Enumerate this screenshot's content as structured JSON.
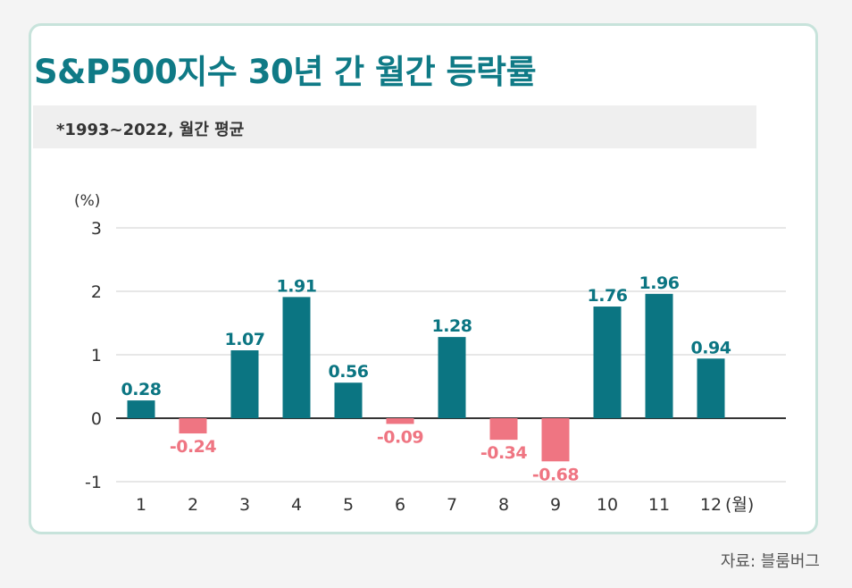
{
  "title": "S&P500지수 30년 간 월간 등락률",
  "subtitle": "*1993~2022, 월간 평균",
  "source": "자료: 블룸버그",
  "colors": {
    "positive": "#0b7582",
    "negative": "#ef7582",
    "title": "#0f7a86",
    "grid": "#cfcfcf",
    "zero_line": "#333333",
    "card_border": "#c7e3db"
  },
  "chart_data": {
    "type": "bar",
    "unit_label": "(%)",
    "x_unit_label": "(월)",
    "categories": [
      "1",
      "2",
      "3",
      "4",
      "5",
      "6",
      "7",
      "8",
      "9",
      "10",
      "11",
      "12"
    ],
    "values": [
      0.28,
      -0.24,
      1.07,
      1.91,
      0.56,
      -0.09,
      1.28,
      -0.34,
      -0.68,
      1.76,
      1.96,
      0.94
    ],
    "value_labels": [
      "0.28",
      "-0.24",
      "1.07",
      "1.91",
      "0.56",
      "-0.09",
      "1.28",
      "-0.34",
      "-0.68",
      "1.76",
      "1.96",
      "0.94"
    ],
    "y_ticks": [
      "3",
      "2",
      "1",
      "0",
      "-1"
    ],
    "ylim": [
      -1,
      3
    ],
    "grid": true
  }
}
